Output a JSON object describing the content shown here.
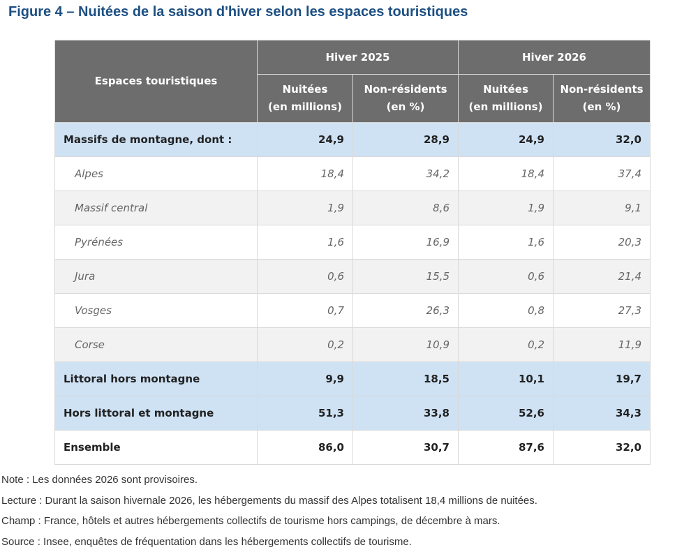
{
  "title": "Figure 4 – Nuitées de la saison d'hiver selon les espaces touristiques",
  "table": {
    "header": {
      "label": "Espaces touristiques",
      "groups": [
        "Hiver 2025",
        "Hiver 2026"
      ],
      "columns": [
        "Nuitées\n(en millions)",
        "Non-résidents\n(en %)",
        "Nuitées\n(en millions)",
        "Non-résidents\n(en %)"
      ]
    },
    "rows": [
      [
        "Massifs de montagne, dont :",
        "24,9",
        "28,9",
        "24,9",
        "32,0"
      ],
      [
        "Alpes",
        "18,4",
        "34,2",
        "18,4",
        "37,4"
      ],
      [
        "Massif central",
        "1,9",
        "8,6",
        "1,9",
        "9,1"
      ],
      [
        "Pyrénées",
        "1,6",
        "16,9",
        "1,6",
        "20,3"
      ],
      [
        "Jura",
        "0,6",
        "15,5",
        "0,6",
        "21,4"
      ],
      [
        "Vosges",
        "0,7",
        "26,3",
        "0,8",
        "27,3"
      ],
      [
        "Corse",
        "0,2",
        "10,9",
        "0,2",
        "11,9"
      ],
      [
        "Littoral hors montagne",
        "9,9",
        "18,5",
        "10,1",
        "19,7"
      ],
      [
        "Hors littoral et montagne",
        "51,3",
        "33,8",
        "52,6",
        "34,3"
      ],
      [
        "Ensemble",
        "86,0",
        "30,7",
        "87,6",
        "32,0"
      ]
    ]
  },
  "notes": [
    "Note : Les données 2026 sont provisoires.",
    "Lecture : Durant la saison hivernale 2026, les hébergements du massif des Alpes totalisent 18,4 millions de nuitées.",
    "Champ : France, hôtels et autres hébergements collectifs de tourisme hors campings, de décembre à mars.",
    "Source : Insee, enquêtes de fréquentation dans les hébergements collectifs de tourisme."
  ]
}
